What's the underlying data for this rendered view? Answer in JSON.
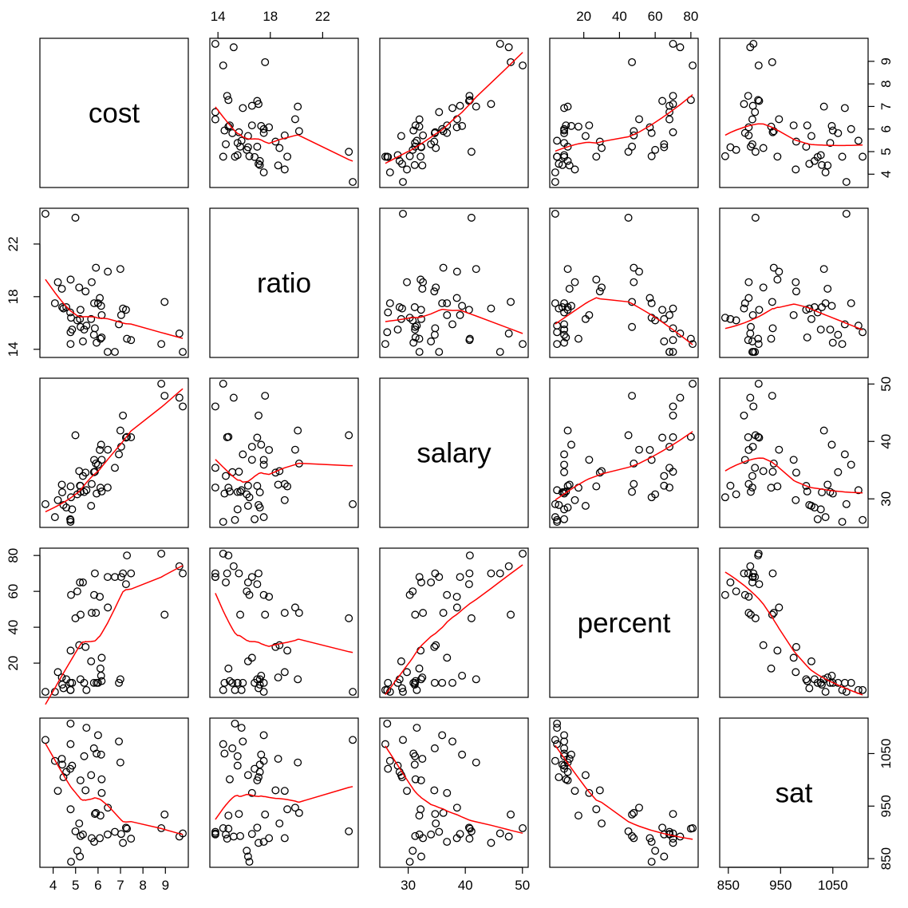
{
  "chart_data": {
    "type": "scatter_matrix",
    "point_color": "#000000",
    "smooth_color": "#ff0000",
    "variables": [
      {
        "name": "cost",
        "lim": [
          3.41,
          10.02
        ],
        "ticks": [
          4,
          5,
          6,
          7,
          8,
          9
        ],
        "values": [
          4.405,
          8.963,
          4.778,
          4.459,
          4.992,
          5.443,
          8.817,
          7.03,
          5.718,
          5.193,
          6.078,
          4.21,
          6.136,
          5.826,
          5.483,
          5.817,
          5.217,
          4.761,
          6.428,
          7.245,
          7.287,
          6.994,
          6.0,
          4.08,
          5.383,
          5.692,
          5.935,
          5.16,
          5.859,
          9.774,
          4.586,
          9.623,
          5.077,
          4.775,
          6.162,
          4.845,
          6.436,
          7.109,
          7.469,
          4.797,
          4.775,
          4.388,
          5.222,
          3.656,
          6.75,
          5.327,
          5.906,
          6.107,
          6.93,
          6.16
        ]
      },
      {
        "name": "ratio",
        "lim": [
          13.38,
          24.72
        ],
        "ticks": [
          14,
          18,
          22
        ],
        "values": [
          17.2,
          17.6,
          19.3,
          17.1,
          24.0,
          18.4,
          14.4,
          16.6,
          19.1,
          16.3,
          17.9,
          19.1,
          17.3,
          17.5,
          15.8,
          15.1,
          17.0,
          16.8,
          13.8,
          17.0,
          14.8,
          20.1,
          17.5,
          17.5,
          15.5,
          16.3,
          14.5,
          18.7,
          15.6,
          13.8,
          17.2,
          15.2,
          16.2,
          15.3,
          16.6,
          15.5,
          19.9,
          17.1,
          14.7,
          16.4,
          14.4,
          18.6,
          15.7,
          24.3,
          13.8,
          14.6,
          20.2,
          14.8,
          15.9,
          14.9
        ]
      },
      {
        "name": "salary",
        "lim": [
          25.03,
          51.01
        ],
        "ticks": [
          30,
          40,
          50
        ],
        "values": [
          31.144,
          47.951,
          32.175,
          28.934,
          41.078,
          34.571,
          50.045,
          39.076,
          32.588,
          32.291,
          38.518,
          29.783,
          39.431,
          36.785,
          31.511,
          34.652,
          32.257,
          26.461,
          31.972,
          40.661,
          40.795,
          41.895,
          35.948,
          26.818,
          31.189,
          28.785,
          30.922,
          34.836,
          34.72,
          46.087,
          28.493,
          47.612,
          30.793,
          26.327,
          36.802,
          28.172,
          38.555,
          44.51,
          40.729,
          30.279,
          25.994,
          32.477,
          31.223,
          29.082,
          35.406,
          33.987,
          36.151,
          31.944,
          37.746,
          31.285
        ]
      },
      {
        "name": "percent",
        "lim": [
          0.92,
          84.08
        ],
        "ticks": [
          20,
          40,
          60,
          80
        ],
        "values": [
          8,
          47,
          27,
          6,
          45,
          29,
          81,
          68,
          48,
          65,
          57,
          15,
          13,
          58,
          5,
          9,
          11,
          9,
          68,
          64,
          80,
          11,
          9,
          4,
          9,
          21,
          9,
          30,
          70,
          70,
          11,
          74,
          60,
          5,
          23,
          9,
          51,
          70,
          70,
          58,
          5,
          12,
          47,
          4,
          68,
          65,
          48,
          17,
          9,
          10
        ]
      },
      {
        "name": "sat",
        "lim": [
          833.5,
          1117.5
        ],
        "ticks": [
          850,
          950,
          1050
        ],
        "values": [
          1029,
          934,
          944,
          1005,
          902,
          980,
          908,
          897,
          889,
          854,
          889,
          979,
          1048,
          882,
          1099,
          1060,
          999,
          1021,
          896,
          909,
          907,
          1033,
          1085,
          1036,
          1045,
          1009,
          1050,
          917,
          935,
          898,
          1015,
          892,
          865,
          1107,
          975,
          1027,
          947,
          880,
          888,
          844,
          1068,
          1040,
          893,
          1076,
          901,
          896,
          937,
          932,
          1073,
          1001
        ]
      }
    ]
  }
}
